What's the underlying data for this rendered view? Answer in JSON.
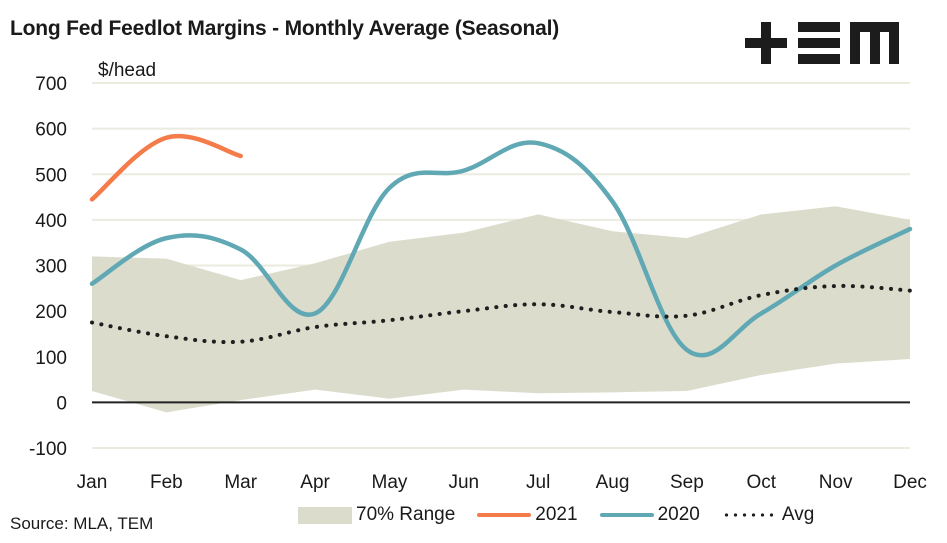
{
  "title": "Long Fed Feedlot Margins - Monthly Average (Seasonal)",
  "logo": {
    "text": "+EM",
    "icon": "tem-logo-icon"
  },
  "source": "Source: MLA, TEM",
  "colors": {
    "range": "#dcdccd",
    "y2021": "#f47b4a",
    "y2020": "#5fa8b4",
    "avg": "#1f1f1f",
    "grid": "#ebebe0",
    "zero_line": "#222222"
  },
  "chart_data": {
    "type": "line",
    "title": "Long Fed Feedlot Margins - Monthly Average (Seasonal)",
    "xlabel": "",
    "ylabel": "$/head",
    "categories": [
      "Jan",
      "Feb",
      "Mar",
      "Apr",
      "May",
      "Jun",
      "Jul",
      "Aug",
      "Sep",
      "Oct",
      "Nov",
      "Dec"
    ],
    "ylim": [
      -100,
      700
    ],
    "yticks": [
      "700",
      "600",
      "500",
      "400",
      "300",
      "200",
      "100",
      "0",
      "-100"
    ],
    "ytick_values": [
      700,
      600,
      500,
      400,
      300,
      200,
      100,
      0,
      -100
    ],
    "grid": true,
    "legend_position": "bottom",
    "band": {
      "name": "70% Range",
      "upper": [
        320,
        315,
        268,
        305,
        352,
        372,
        412,
        375,
        360,
        412,
        430,
        400
      ],
      "lower": [
        25,
        -22,
        5,
        28,
        8,
        28,
        20,
        22,
        25,
        60,
        85,
        95
      ]
    },
    "series": [
      {
        "name": "2021",
        "values": [
          445,
          580,
          540,
          null,
          null,
          null,
          null,
          null,
          null,
          null,
          null,
          null
        ]
      },
      {
        "name": "2020",
        "values": [
          260,
          360,
          335,
          195,
          470,
          508,
          568,
          440,
          115,
          195,
          300,
          380
        ]
      },
      {
        "name": "Avg",
        "values": [
          175,
          145,
          133,
          165,
          180,
          200,
          215,
          198,
          190,
          235,
          255,
          245
        ]
      }
    ]
  },
  "legend": [
    {
      "label": "70% Range",
      "kind": "band"
    },
    {
      "label": "2021",
      "kind": "line"
    },
    {
      "label": "2020",
      "kind": "line"
    },
    {
      "label": "Avg",
      "kind": "dotted"
    }
  ]
}
